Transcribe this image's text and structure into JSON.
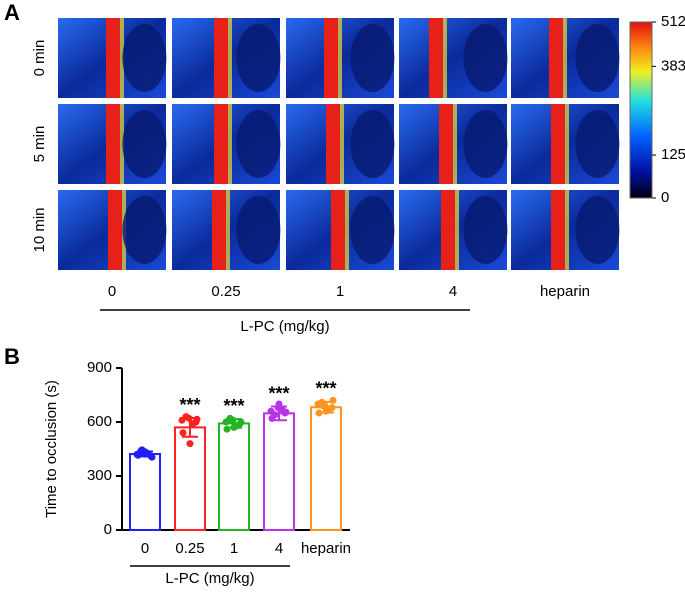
{
  "panel_a": {
    "label": "A",
    "rows": [
      "0 min",
      "5 min",
      "10 min"
    ],
    "columns": [
      "0",
      "0.25",
      "1",
      "4",
      "heparin"
    ],
    "xlabel": "L-PC (mg/kg)",
    "colorbar": {
      "lim": [
        0,
        512
      ],
      "ticks": [
        512,
        383,
        125,
        0
      ]
    }
  },
  "chart_data": {
    "type": "bar",
    "label": "B",
    "categories": [
      "0",
      "0.25",
      "1",
      "4",
      "heparin"
    ],
    "values": [
      422,
      570,
      592,
      648,
      682
    ],
    "errors": [
      14,
      52,
      24,
      38,
      30
    ],
    "points": [
      [
        420,
        430,
        410,
        440,
        425,
        415,
        435,
        405,
        445
      ],
      [
        610,
        620,
        600,
        630,
        590,
        540,
        480,
        615
      ],
      [
        600,
        610,
        590,
        620,
        580,
        560,
        570,
        600,
        615
      ],
      [
        660,
        680,
        650,
        640,
        670,
        620,
        700,
        655
      ],
      [
        700,
        690,
        680,
        710,
        670,
        650,
        660,
        720,
        690
      ]
    ],
    "colors": [
      "#1f1fff",
      "#ff2020",
      "#22b422",
      "#b833e8",
      "#ff9420"
    ],
    "significance": [
      null,
      "***",
      "***",
      "***",
      "***"
    ],
    "ylabel": "Time to occlusion (s)",
    "xlabel": "L-PC (mg/kg)",
    "ylim": [
      0,
      900
    ],
    "yticks": [
      0,
      300,
      600,
      900
    ]
  }
}
